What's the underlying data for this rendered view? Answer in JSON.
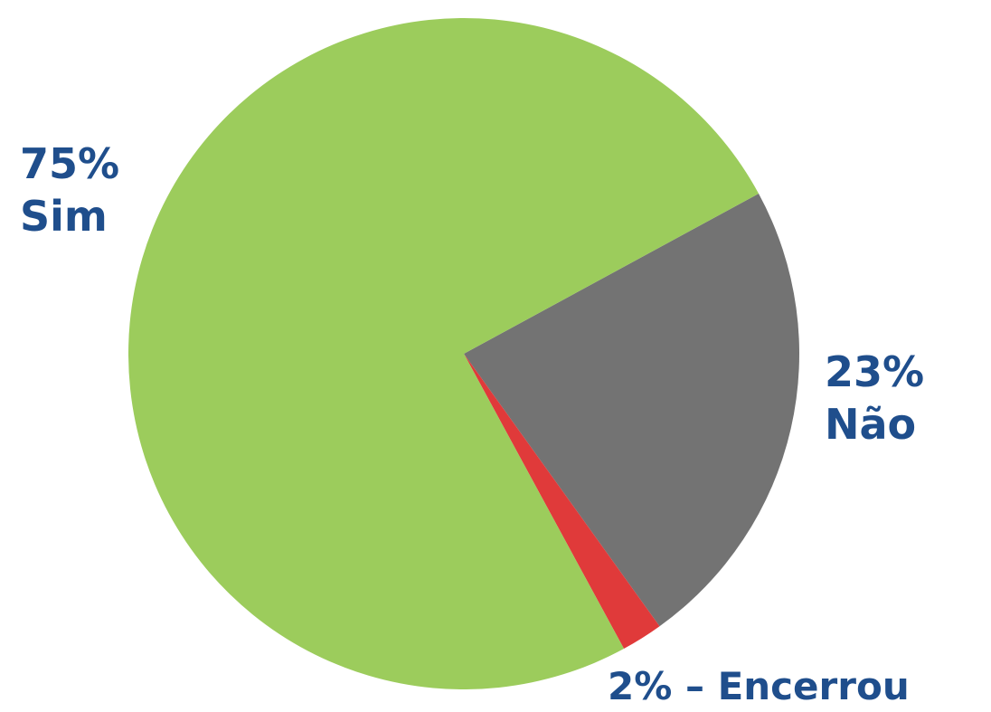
{
  "chart_data": {
    "type": "pie",
    "slices": [
      {
        "label": "Sim",
        "value": 75,
        "display": "75%",
        "color": "#9ccc5c"
      },
      {
        "label": "Não",
        "value": 23,
        "display": "23%",
        "color": "#737373"
      },
      {
        "label": "Encerrou",
        "value": 2,
        "display": "2%",
        "color": "#e03a3a"
      }
    ],
    "separator": "–",
    "label_color": "#1f4e8c"
  }
}
